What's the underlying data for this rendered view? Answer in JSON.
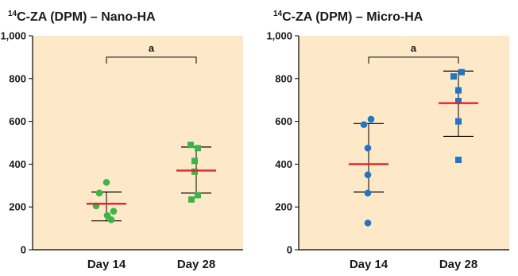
{
  "chart_data": [
    {
      "type": "scatter",
      "title_sup": "14",
      "title_rest": "C-ZA (DPM) – Nano-HA",
      "categories": [
        "Day 14",
        "Day 28"
      ],
      "ylim": [
        0,
        1000
      ],
      "yticks": [
        "0",
        "200",
        "400",
        "600",
        "800",
        "1,000"
      ],
      "ytick_values": [
        0,
        200,
        400,
        600,
        800,
        1000
      ],
      "series": [
        {
          "category": "Day 14",
          "marker": "circle",
          "color": "#3cb44a",
          "points": [
            315,
            265,
            205,
            180,
            160,
            140
          ],
          "mean": 215,
          "err_low": 135,
          "err_high": 270
        },
        {
          "category": "Day 28",
          "marker": "square",
          "color": "#3cb44a",
          "points": [
            490,
            475,
            415,
            365,
            255,
            235
          ],
          "mean": 370,
          "err_low": 265,
          "err_high": 480
        }
      ],
      "significance": {
        "label": "a",
        "value": 900
      },
      "mean_color": "#e0262b",
      "background": "#fde9c8"
    },
    {
      "type": "scatter",
      "title_sup": "14",
      "title_rest": "C-ZA (DPM) – Micro-HA",
      "categories": [
        "Day 14",
        "Day 28"
      ],
      "ylim": [
        0,
        1000
      ],
      "yticks": [
        "0",
        "200",
        "400",
        "600",
        "800",
        "1,000"
      ],
      "ytick_values": [
        0,
        200,
        400,
        600,
        800,
        1000
      ],
      "series": [
        {
          "category": "Day 14",
          "marker": "circle",
          "color": "#1f77c4",
          "points": [
            610,
            585,
            475,
            350,
            265,
            125
          ],
          "mean": 400,
          "err_low": 270,
          "err_high": 590
        },
        {
          "category": "Day 28",
          "marker": "square",
          "color": "#1f77c4",
          "points": [
            830,
            810,
            745,
            695,
            600,
            420
          ],
          "mean": 685,
          "err_low": 530,
          "err_high": 835
        }
      ],
      "significance": {
        "label": "a",
        "value": 900
      },
      "mean_color": "#e0262b",
      "background": "#fde9c8"
    }
  ]
}
